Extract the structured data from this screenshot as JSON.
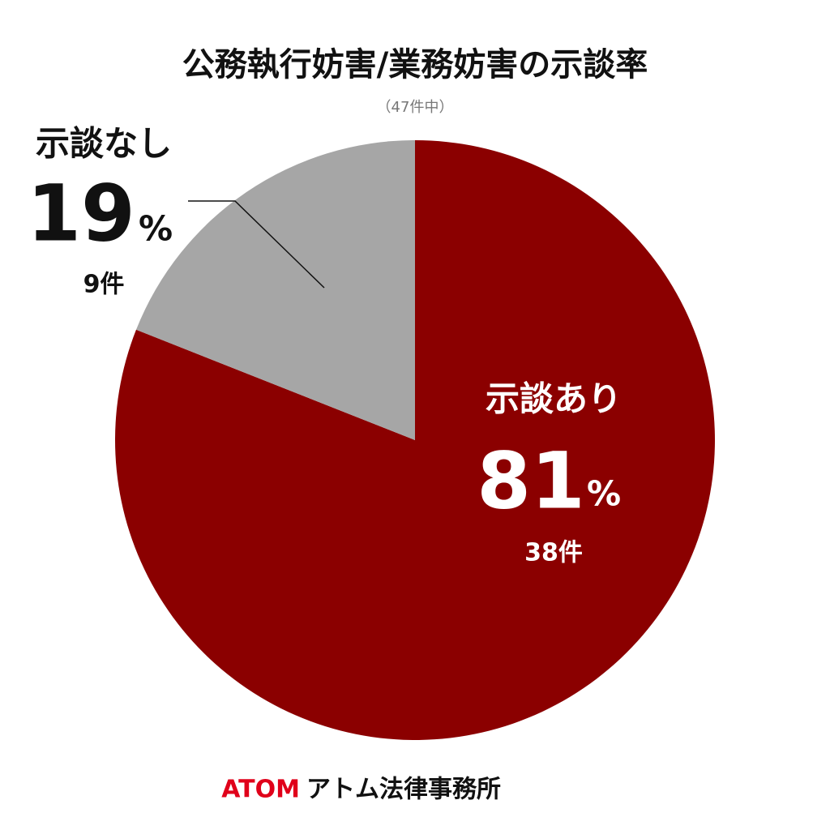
{
  "chart_data": {
    "type": "pie",
    "title": "公務執行妨害/業務妨害の示談率",
    "subtitle": "（47件中）",
    "categories": [
      "示談あり",
      "示談なし"
    ],
    "values": [
      81,
      19
    ],
    "unit": "%",
    "count_labels": [
      "38件",
      "9件"
    ],
    "colors": [
      "#8b0000",
      "#a6a6a6"
    ]
  },
  "footer": {
    "brand": "ATOM",
    "name": "アトム法律事務所"
  }
}
